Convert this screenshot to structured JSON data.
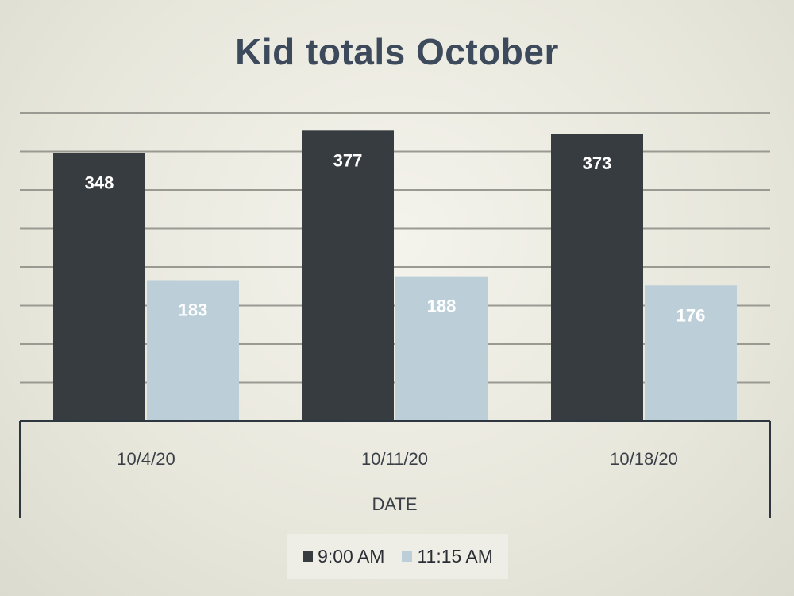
{
  "chart_data": {
    "type": "bar",
    "title": "Kid totals October",
    "xlabel": "DATE",
    "ylabel": "",
    "categories": [
      "10/4/20",
      "10/11/20",
      "10/18/20"
    ],
    "series": [
      {
        "name": "9:00 AM",
        "values": [
          348,
          377,
          373
        ],
        "color": "#373c41",
        "label_color": "#ffffff"
      },
      {
        "name": "11:15 AM",
        "values": [
          183,
          188,
          176
        ],
        "color": "#bccfd9",
        "label_color": "#ffffff"
      }
    ],
    "ylim": [
      0,
      400
    ],
    "grid": true,
    "legend_position": "bottom",
    "colors": {
      "title": "#3d4a5c",
      "grid": "#9a9a93",
      "axis": "#2e3640"
    }
  }
}
